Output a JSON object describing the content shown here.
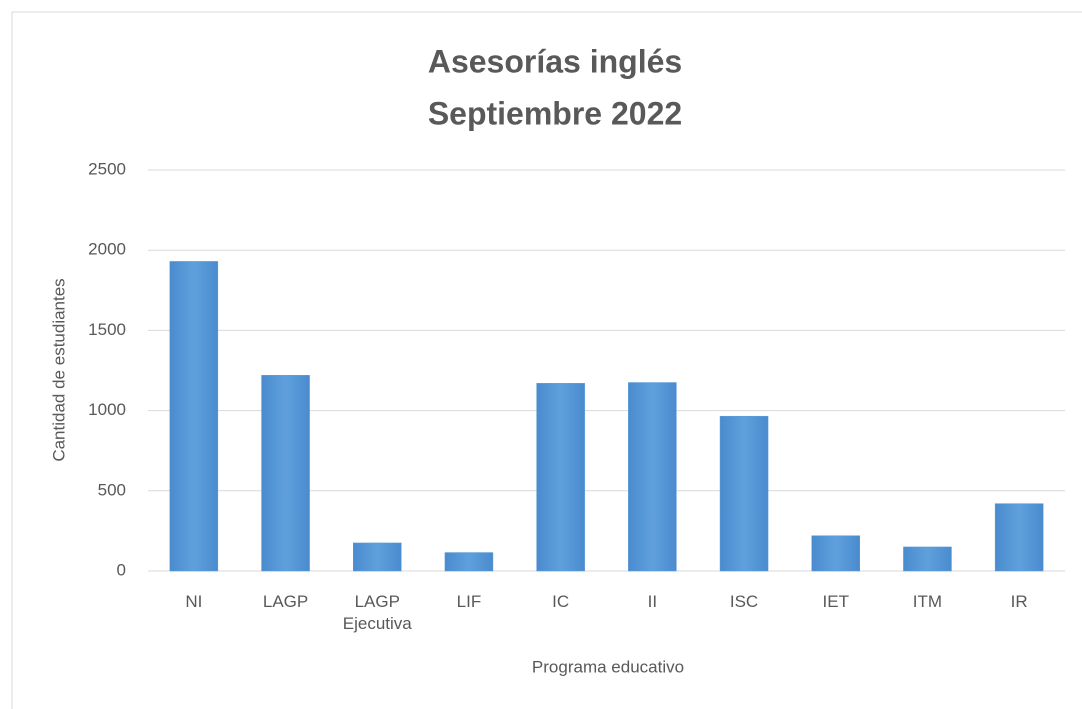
{
  "chart_data": {
    "type": "bar",
    "title": [
      "Asesorías inglés",
      "Septiembre 2022"
    ],
    "x_label": "Programa educativo",
    "y_label": "Cantidad de estudiantes",
    "categories": [
      "NI",
      "LAGP",
      "LAGP Ejecutiva",
      "LIF",
      "IC",
      "II",
      "ISC",
      "IET",
      "ITM",
      "IR"
    ],
    "values": [
      1930,
      1220,
      175,
      115,
      1170,
      1175,
      965,
      220,
      150,
      420
    ],
    "color": "#5b9bd5",
    "ylim": [
      0,
      2500
    ],
    "yticks": [
      0,
      500,
      1000,
      1500,
      2000,
      2500
    ],
    "grid": true
  }
}
